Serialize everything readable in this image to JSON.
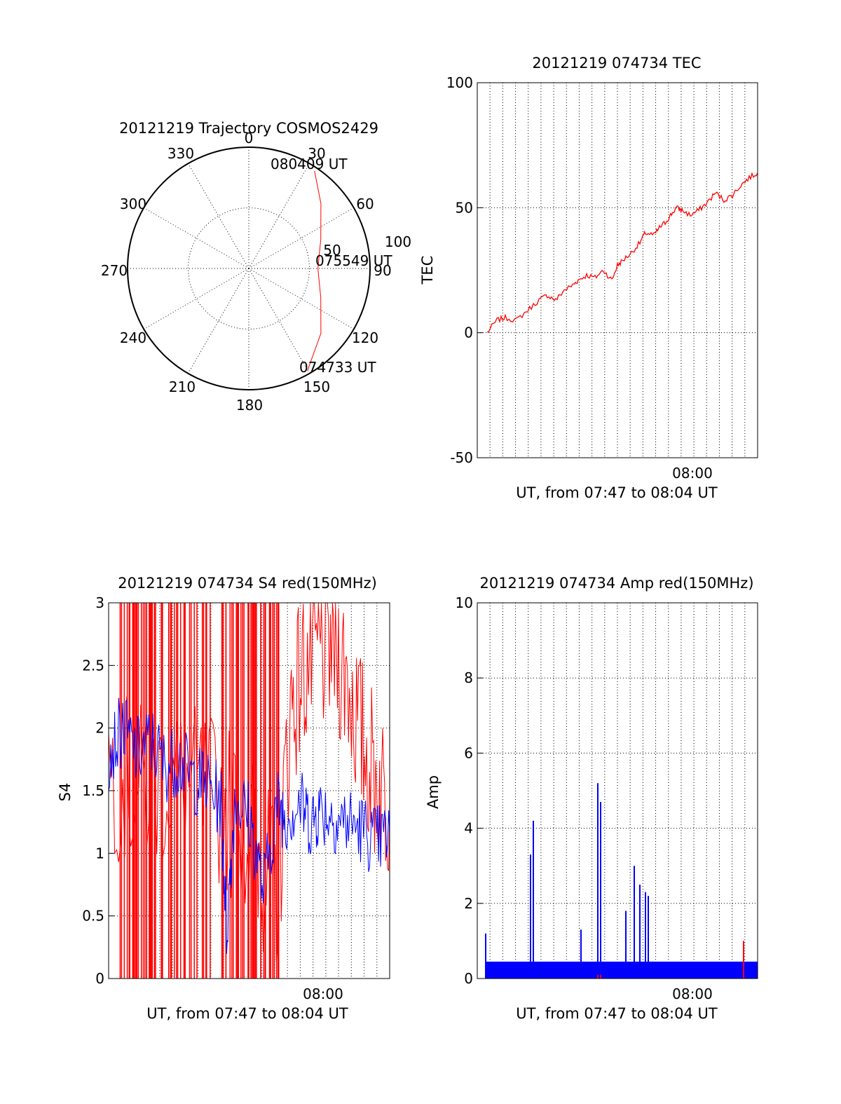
{
  "chart_data": [
    {
      "type": "polar",
      "title": "20121219 Trajectory COSMOS2429",
      "angle_labels": [
        "0",
        "30",
        "60",
        "90",
        "120",
        "150",
        "180",
        "210",
        "240",
        "270",
        "300",
        "330"
      ],
      "radial_labels": [
        "50",
        "100"
      ],
      "series": [
        {
          "color": "#ff0000",
          "points": [
            {
              "azimuth": 150,
              "zenith": 97
            },
            {
              "azimuth": 132,
              "zenith": 80
            },
            {
              "azimuth": 112,
              "zenith": 64
            },
            {
              "azimuth": 90,
              "zenith": 57
            },
            {
              "azimuth": 68,
              "zenith": 64
            },
            {
              "azimuth": 48,
              "zenith": 80
            },
            {
              "azimuth": 34,
              "zenith": 97
            }
          ]
        }
      ],
      "annotations": [
        "080409 UT",
        "075549 UT",
        "074733 UT"
      ]
    },
    {
      "type": "line",
      "title": "20121219 074734 TEC",
      "ylabel": "TEC",
      "xlabel": "UT, from 07:47 to 08:04 UT",
      "xtick_labels": [
        "08:00"
      ],
      "ylim": [
        -50,
        100
      ],
      "yticks": [
        -50,
        0,
        50,
        100
      ],
      "xlim": [
        0,
        1
      ],
      "x_grid_count": 22,
      "series": [
        {
          "color": "#ff0000",
          "x": [
            0.035,
            0.07,
            0.1,
            0.14,
            0.18,
            0.22,
            0.25,
            0.28,
            0.31,
            0.34,
            0.36,
            0.39,
            0.42,
            0.45,
            0.48,
            0.5,
            0.52,
            0.55,
            0.58,
            0.6,
            0.63,
            0.65,
            0.67,
            0.69,
            0.71,
            0.73,
            0.76,
            0.79,
            0.82,
            0.85,
            0.88,
            0.91,
            0.94,
            0.97,
            1.0
          ],
          "y": [
            0,
            5,
            6,
            5,
            9,
            13,
            15,
            13,
            17,
            19,
            21,
            23,
            22,
            25,
            21,
            27,
            29,
            32,
            36,
            40,
            39,
            42,
            44,
            47,
            50,
            49,
            47,
            49,
            52,
            56,
            53,
            55,
            59,
            62,
            64
          ]
        }
      ]
    },
    {
      "type": "line",
      "title": "20121219 074734 S4 red(150MHz)",
      "ylabel": "S4",
      "xlabel": "UT, from 07:47 to 08:04 UT",
      "xtick_labels": [
        "08:00"
      ],
      "ylim": [
        0,
        3
      ],
      "yticks": [
        "0",
        "0.5",
        "1",
        "1.5",
        "2",
        "2.5",
        "3"
      ],
      "xlim": [
        0,
        1
      ],
      "x_grid_count": 22,
      "series": [
        {
          "color": "#ff0000",
          "x": [
            0.0,
            0.1,
            0.2,
            0.3,
            0.4,
            0.5,
            0.55,
            0.6,
            0.65,
            0.7,
            0.75,
            0.8,
            0.85,
            0.9,
            0.95,
            1.0
          ],
          "y": [
            1.7,
            1.5,
            1.6,
            1.5,
            1.4,
            1.2,
            0.9,
            0.7,
            2.2,
            2.5,
            2.6,
            2.7,
            2.4,
            1.9,
            1.6,
            1.4
          ]
        },
        {
          "color": "#0000ff",
          "x": [
            0.0,
            0.05,
            0.1,
            0.15,
            0.2,
            0.25,
            0.3,
            0.35,
            0.4,
            0.42,
            0.45,
            0.5,
            0.55,
            0.6,
            0.63,
            0.68,
            0.72,
            0.75,
            0.8,
            0.85,
            0.9,
            0.95,
            1.0
          ],
          "y": [
            1.8,
            2.0,
            1.8,
            1.9,
            1.7,
            1.75,
            1.6,
            1.55,
            1.4,
            0.4,
            1.45,
            1.3,
            0.7,
            1.4,
            1.3,
            1.4,
            1.25,
            1.35,
            1.3,
            1.25,
            1.2,
            1.1,
            1.15
          ]
        }
      ]
    },
    {
      "type": "line",
      "title": "20121219 074734 Amp red(150MHz)",
      "ylabel": "Amp",
      "xlabel": "UT, from 07:47 to 08:04 UT",
      "xtick_labels": [
        "08:00"
      ],
      "ylim": [
        0,
        10
      ],
      "yticks": [
        0,
        2,
        4,
        6,
        8,
        10
      ],
      "xlim": [
        0,
        1
      ],
      "x_grid_count": 22,
      "series": [
        {
          "color": "#0000ff",
          "baseline": 0.45,
          "x": [
            0.03,
            0.19,
            0.2,
            0.37,
            0.43,
            0.44,
            0.53,
            0.56,
            0.58,
            0.6,
            0.61
          ],
          "y": [
            1.2,
            3.3,
            4.2,
            1.3,
            5.2,
            4.7,
            1.8,
            3.0,
            2.5,
            2.3,
            2.2
          ]
        },
        {
          "color": "#ff0000",
          "x": [
            0.43,
            0.44,
            0.95
          ],
          "y": [
            0.1,
            0.1,
            1.0
          ]
        }
      ]
    }
  ]
}
